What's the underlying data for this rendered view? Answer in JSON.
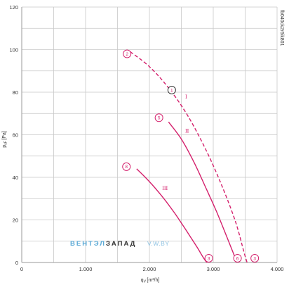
{
  "chart_data": {
    "type": "line",
    "xlabel": "q",
    "xlabel_sub": "V",
    "xlabel_unit": "[m³/h]",
    "ylabel": "p",
    "ylabel_sub": "sF",
    "ylabel_unit": "[Pa]",
    "xlim": [
      0,
      4000
    ],
    "ylim": [
      0,
      120
    ],
    "x_ticks": [
      0,
      500,
      1000,
      1500,
      2000,
      2500,
      3000,
      3500,
      4000
    ],
    "x_tick_labels": [
      "0",
      "",
      "1.000",
      "",
      "2.000",
      "",
      "3.000",
      "",
      "4.000"
    ],
    "y_ticks": [
      0,
      10,
      20,
      30,
      40,
      50,
      60,
      70,
      80,
      90,
      100,
      110,
      120
    ],
    "y_tick_labels": [
      "0",
      "",
      "20",
      "",
      "40",
      "",
      "60",
      "",
      "80",
      "",
      "100",
      "",
      "120"
    ],
    "grid": true,
    "side_code": "fb040ck2r6ik801",
    "series": [
      {
        "name": "I",
        "style": "dashed",
        "x": [
          1700,
          2000,
          2300,
          2600,
          2900,
          3150,
          3350,
          3480,
          3530
        ],
        "y": [
          99,
          92,
          82,
          69,
          52,
          35,
          19,
          5,
          0
        ]
      },
      {
        "name": "II",
        "style": "solid",
        "x": [
          2300,
          2500,
          2700,
          2900,
          3050,
          3200,
          3320,
          3370
        ],
        "y": [
          66,
          58,
          47,
          34,
          24,
          13,
          4,
          0
        ]
      },
      {
        "name": "III",
        "style": "solid",
        "x": [
          1800,
          2000,
          2200,
          2400,
          2600,
          2750,
          2850,
          2900
        ],
        "y": [
          44,
          38,
          31,
          23,
          14,
          7,
          2,
          0
        ]
      }
    ],
    "curve_labels": [
      {
        "text": "I",
        "x": 2560,
        "y": 77
      },
      {
        "text": "II",
        "x": 2560,
        "y": 61
      },
      {
        "text": "III",
        "x": 2200,
        "y": 34
      }
    ],
    "markers": [
      {
        "text": "2",
        "x": 1650,
        "y": 98
      },
      {
        "text": "1",
        "x": 2350,
        "y": 81,
        "outline": "dark"
      },
      {
        "text": "5",
        "x": 2150,
        "y": 68
      },
      {
        "text": "8",
        "x": 1640,
        "y": 45
      },
      {
        "text": "3",
        "x": 2930,
        "y": 2
      },
      {
        "text": "6",
        "x": 3380,
        "y": 2
      },
      {
        "text": "3",
        "x": 3650,
        "y": 2
      }
    ],
    "colors": {
      "curve": "#d4206c",
      "grid": "#c8c8c8",
      "axis": "#9a9a9a"
    }
  },
  "watermark": {
    "part1": "ВЕНТЭЛ",
    "part2": "ЗАПАД",
    "part3": "V.W.BY",
    "color1": "#5aa9d6",
    "color2": "#333333",
    "color3": "#8fc3e3"
  }
}
